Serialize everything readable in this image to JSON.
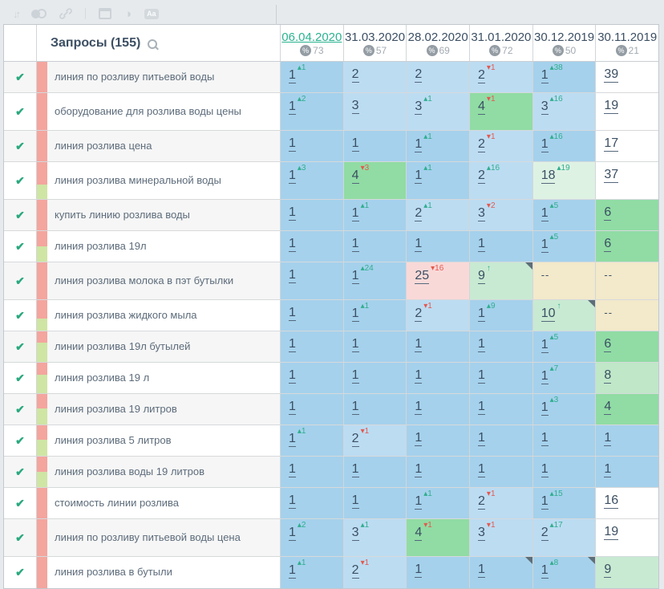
{
  "toolbar": {
    "sort_glyph": "↓↑",
    "contrast_glyph": "◑",
    "aa_label": "Aa"
  },
  "header": {
    "queries_label": "Запросы",
    "queries_count": "(155)"
  },
  "columns": [
    {
      "date": "06.04.2020",
      "percent": "73",
      "active": true
    },
    {
      "date": "31.03.2020",
      "percent": "57",
      "active": false
    },
    {
      "date": "28.02.2020",
      "percent": "69",
      "active": false
    },
    {
      "date": "31.01.2020",
      "percent": "72",
      "active": false
    },
    {
      "date": "30.12.2019",
      "percent": "50",
      "active": false
    },
    {
      "date": "30.11.2019",
      "percent": "21",
      "active": false
    }
  ],
  "palette": {
    "accent_date_green": "#2bb390",
    "delta_up_green": "#2fae8e",
    "delta_down_red": "#e4584e",
    "pos1_blue": "#a5d1ec",
    "pos2_3_blue": "#bcdcf2",
    "pos4_6_green": "#90dca4",
    "pos8_green": "#bfe7c8",
    "pos9_10_green": "#c8ead2",
    "pos18_green": "#def2e4",
    "pos25_pink": "#f9d9d8",
    "not_ranked_tan": "#f3e9cb",
    "strip_pink": "#f4a59e",
    "strip_green": "#cfe5a4",
    "check_green": "#2aa97f"
  },
  "rows": [
    {
      "keyword": "линия по розливу питьевой воды",
      "tall": false,
      "strip": [
        {
          "color": "pink",
          "pct": 100
        }
      ],
      "cells": [
        {
          "v": "1",
          "d": "1",
          "dir": "up",
          "bg": "b1"
        },
        {
          "v": "2",
          "bg": "b2"
        },
        {
          "v": "2",
          "bg": "b2"
        },
        {
          "v": "2",
          "d": "1",
          "dir": "down",
          "bg": "b2"
        },
        {
          "v": "1",
          "d": "38",
          "dir": "up",
          "bg": "b1"
        },
        {
          "v": "39",
          "bg": "w"
        }
      ]
    },
    {
      "keyword": "оборудование для розлива воды цены",
      "tall": true,
      "strip": [
        {
          "color": "pink",
          "pct": 100
        }
      ],
      "cells": [
        {
          "v": "1",
          "d": "2",
          "dir": "up",
          "bg": "b1"
        },
        {
          "v": "3",
          "bg": "b2"
        },
        {
          "v": "3",
          "d": "1",
          "dir": "up",
          "bg": "b2"
        },
        {
          "v": "4",
          "d": "1",
          "dir": "down",
          "bg": "g1"
        },
        {
          "v": "3",
          "d": "16",
          "dir": "up",
          "bg": "b2"
        },
        {
          "v": "19",
          "bg": "w"
        }
      ]
    },
    {
      "keyword": "линия розлива цена",
      "tall": false,
      "strip": [
        {
          "color": "pink",
          "pct": 100
        }
      ],
      "cells": [
        {
          "v": "1",
          "bg": "b1"
        },
        {
          "v": "1",
          "bg": "b1"
        },
        {
          "v": "1",
          "d": "1",
          "dir": "up",
          "bg": "b1"
        },
        {
          "v": "2",
          "d": "1",
          "dir": "down",
          "bg": "b2"
        },
        {
          "v": "1",
          "d": "16",
          "dir": "up",
          "bg": "b1"
        },
        {
          "v": "17",
          "bg": "w"
        }
      ]
    },
    {
      "keyword": "линия розлива минеральной воды",
      "tall": true,
      "strip": [
        {
          "color": "pink",
          "pct": 60
        },
        {
          "color": "green",
          "pct": 40
        }
      ],
      "cells": [
        {
          "v": "1",
          "d": "3",
          "dir": "up",
          "bg": "b1"
        },
        {
          "v": "4",
          "d": "3",
          "dir": "down",
          "bg": "g1"
        },
        {
          "v": "1",
          "d": "1",
          "dir": "up",
          "bg": "b1"
        },
        {
          "v": "2",
          "d": "16",
          "dir": "up",
          "bg": "b2"
        },
        {
          "v": "18",
          "d": "19",
          "dir": "up",
          "bg": "g4"
        },
        {
          "v": "37",
          "bg": "w"
        }
      ]
    },
    {
      "keyword": "купить линию розлива воды",
      "tall": false,
      "strip": [
        {
          "color": "pink",
          "pct": 100
        }
      ],
      "cells": [
        {
          "v": "1",
          "bg": "b1"
        },
        {
          "v": "1",
          "d": "1",
          "dir": "up",
          "bg": "b1"
        },
        {
          "v": "2",
          "d": "1",
          "dir": "up",
          "bg": "b2"
        },
        {
          "v": "3",
          "d": "2",
          "dir": "down",
          "bg": "b2"
        },
        {
          "v": "1",
          "d": "5",
          "dir": "up",
          "bg": "b1"
        },
        {
          "v": "6",
          "bg": "g1"
        }
      ]
    },
    {
      "keyword": "линия розлива 19л",
      "tall": false,
      "strip": [
        {
          "color": "pink",
          "pct": 50
        },
        {
          "color": "green",
          "pct": 50
        }
      ],
      "cells": [
        {
          "v": "1",
          "bg": "b1"
        },
        {
          "v": "1",
          "bg": "b1"
        },
        {
          "v": "1",
          "bg": "b1"
        },
        {
          "v": "1",
          "bg": "b1"
        },
        {
          "v": "1",
          "d": "5",
          "dir": "up",
          "bg": "b1"
        },
        {
          "v": "6",
          "bg": "g1"
        }
      ]
    },
    {
      "keyword": "линия розлива молока в пэт бутылки",
      "tall": true,
      "strip": [
        {
          "color": "pink",
          "pct": 100
        }
      ],
      "cells": [
        {
          "v": "1",
          "bg": "b1"
        },
        {
          "v": "1",
          "d": "24",
          "dir": "up",
          "bg": "b1"
        },
        {
          "v": "25",
          "d": "16",
          "dir": "down",
          "bg": "r1"
        },
        {
          "v": "9",
          "arrow": "up",
          "bg": "g3",
          "corner": true
        },
        {
          "v": "--",
          "bg": "t"
        },
        {
          "v": "--",
          "bg": "t"
        }
      ]
    },
    {
      "keyword": "линия розлива жидкого мыла",
      "tall": false,
      "strip": [
        {
          "color": "pink",
          "pct": 60
        },
        {
          "color": "green",
          "pct": 40
        }
      ],
      "cells": [
        {
          "v": "1",
          "bg": "b1"
        },
        {
          "v": "1",
          "d": "1",
          "dir": "up",
          "bg": "b1"
        },
        {
          "v": "2",
          "d": "1",
          "dir": "down",
          "bg": "b2"
        },
        {
          "v": "1",
          "d": "9",
          "dir": "up",
          "bg": "b1"
        },
        {
          "v": "10",
          "arrow": "up",
          "bg": "g3",
          "corner": true
        },
        {
          "v": "--",
          "bg": "t"
        }
      ]
    },
    {
      "keyword": "линии розлива 19л бутылей",
      "tall": false,
      "strip": [
        {
          "color": "pink",
          "pct": 36
        },
        {
          "color": "green",
          "pct": 64
        }
      ],
      "cells": [
        {
          "v": "1",
          "bg": "b1"
        },
        {
          "v": "1",
          "bg": "b1"
        },
        {
          "v": "1",
          "bg": "b1"
        },
        {
          "v": "1",
          "bg": "b1"
        },
        {
          "v": "1",
          "d": "5",
          "dir": "up",
          "bg": "b1"
        },
        {
          "v": "6",
          "bg": "g1"
        }
      ]
    },
    {
      "keyword": "линия розлива 19 л",
      "tall": false,
      "strip": [
        {
          "color": "pink",
          "pct": 40
        },
        {
          "color": "green",
          "pct": 60
        }
      ],
      "cells": [
        {
          "v": "1",
          "bg": "b1"
        },
        {
          "v": "1",
          "bg": "b1"
        },
        {
          "v": "1",
          "bg": "b1"
        },
        {
          "v": "1",
          "bg": "b1"
        },
        {
          "v": "1",
          "d": "7",
          "dir": "up",
          "bg": "b1"
        },
        {
          "v": "8",
          "bg": "g2"
        }
      ]
    },
    {
      "keyword": "линия розлива 19 литров",
      "tall": false,
      "strip": [
        {
          "color": "pink",
          "pct": 48
        },
        {
          "color": "green",
          "pct": 52
        }
      ],
      "cells": [
        {
          "v": "1",
          "bg": "b1"
        },
        {
          "v": "1",
          "bg": "b1"
        },
        {
          "v": "1",
          "bg": "b1"
        },
        {
          "v": "1",
          "bg": "b1"
        },
        {
          "v": "1",
          "d": "3",
          "dir": "up",
          "bg": "b1"
        },
        {
          "v": "4",
          "bg": "g1"
        }
      ]
    },
    {
      "keyword": "линия розлива 5 литров",
      "tall": false,
      "strip": [
        {
          "color": "pink",
          "pct": 48
        },
        {
          "color": "green",
          "pct": 52
        }
      ],
      "cells": [
        {
          "v": "1",
          "d": "1",
          "dir": "up",
          "bg": "b1"
        },
        {
          "v": "2",
          "d": "1",
          "dir": "down",
          "bg": "b2"
        },
        {
          "v": "1",
          "bg": "b1"
        },
        {
          "v": "1",
          "bg": "b1"
        },
        {
          "v": "1",
          "bg": "b1"
        },
        {
          "v": "1",
          "bg": "b1"
        }
      ]
    },
    {
      "keyword": "линия розлива воды 19 литров",
      "tall": false,
      "strip": [
        {
          "color": "pink",
          "pct": 50
        },
        {
          "color": "green",
          "pct": 50
        }
      ],
      "cells": [
        {
          "v": "1",
          "bg": "b1"
        },
        {
          "v": "1",
          "bg": "b1"
        },
        {
          "v": "1",
          "bg": "b1"
        },
        {
          "v": "1",
          "bg": "b1"
        },
        {
          "v": "1",
          "bg": "b1"
        },
        {
          "v": "1",
          "bg": "b1"
        }
      ]
    },
    {
      "keyword": "стоимость линии розлива",
      "tall": false,
      "strip": [
        {
          "color": "pink",
          "pct": 100
        }
      ],
      "cells": [
        {
          "v": "1",
          "bg": "b1"
        },
        {
          "v": "1",
          "bg": "b1"
        },
        {
          "v": "1",
          "d": "1",
          "dir": "up",
          "bg": "b1"
        },
        {
          "v": "2",
          "d": "1",
          "dir": "down",
          "bg": "b2"
        },
        {
          "v": "1",
          "d": "15",
          "dir": "up",
          "bg": "b1"
        },
        {
          "v": "16",
          "bg": "w"
        }
      ]
    },
    {
      "keyword": "линия по розливу питьевой воды цена",
      "tall": true,
      "strip": [
        {
          "color": "pink",
          "pct": 100
        }
      ],
      "cells": [
        {
          "v": "1",
          "d": "2",
          "dir": "up",
          "bg": "b1"
        },
        {
          "v": "3",
          "d": "1",
          "dir": "up",
          "bg": "b2"
        },
        {
          "v": "4",
          "d": "1",
          "dir": "down",
          "bg": "g1"
        },
        {
          "v": "3",
          "d": "1",
          "dir": "down",
          "bg": "b2"
        },
        {
          "v": "2",
          "d": "17",
          "dir": "up",
          "bg": "b2"
        },
        {
          "v": "19",
          "bg": "w"
        }
      ]
    },
    {
      "keyword": "линия розлива в бутыли",
      "tall": false,
      "strip": [
        {
          "color": "pink",
          "pct": 100
        }
      ],
      "cells": [
        {
          "v": "1",
          "d": "1",
          "dir": "up",
          "bg": "b1"
        },
        {
          "v": "2",
          "d": "1",
          "dir": "down",
          "bg": "b2"
        },
        {
          "v": "1",
          "bg": "b1"
        },
        {
          "v": "1",
          "bg": "b1",
          "corner": true
        },
        {
          "v": "1",
          "d": "8",
          "dir": "up",
          "bg": "b1",
          "corner": true
        },
        {
          "v": "9",
          "bg": "g3"
        }
      ]
    }
  ]
}
